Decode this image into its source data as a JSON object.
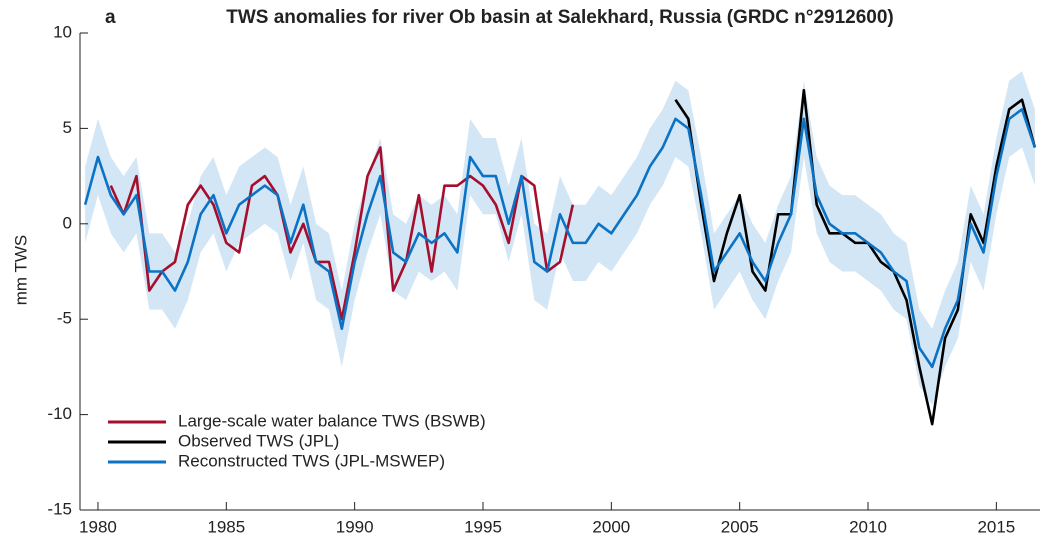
{
  "chart_data": {
    "type": "line",
    "panel_label": "a",
    "title": "TWS anomalies for river Ob basin at Salekhard, Russia (GRDC n°2912600)",
    "y_label": "mm TWS",
    "x": [
      1979.5,
      1980,
      1980.5,
      1981,
      1981.5,
      1982,
      1982.5,
      1983,
      1983.5,
      1984,
      1984.5,
      1985,
      1985.5,
      1986,
      1986.5,
      1987,
      1987.5,
      1988,
      1988.5,
      1989,
      1989.5,
      1990,
      1990.5,
      1991,
      1991.5,
      1992,
      1992.5,
      1993,
      1993.5,
      1994,
      1994.5,
      1995,
      1995.5,
      1996,
      1996.5,
      1997,
      1997.5,
      1998,
      1998.5,
      1999,
      1999.5,
      2000,
      2000.5,
      2001,
      2001.5,
      2002,
      2002.5,
      2003,
      2003.5,
      2004,
      2004.5,
      2005,
      2005.5,
      2006,
      2006.5,
      2007,
      2007.5,
      2008,
      2008.5,
      2009,
      2009.5,
      2010,
      2010.5,
      2011,
      2011.5,
      2012,
      2012.5,
      2013,
      2013.5,
      2014,
      2014.5,
      2015,
      2015.5,
      2016,
      2016.5
    ],
    "series": [
      {
        "name": "Large-scale water balance TWS (BSWB)",
        "color": "#a50f2d",
        "values": [
          null,
          null,
          2,
          0.5,
          2.5,
          -3.5,
          -2.5,
          -2,
          1,
          2,
          1,
          -1,
          -1.5,
          2,
          2.5,
          1.5,
          -1.5,
          0,
          -2,
          -2,
          -5,
          -1.5,
          2.5,
          4,
          -3.5,
          -2,
          1.5,
          -2.5,
          2,
          2,
          2.5,
          2,
          1,
          -1,
          2.5,
          2,
          -2.5,
          -2,
          1,
          null,
          null,
          null,
          null,
          null,
          null,
          null,
          null,
          null,
          null,
          null,
          null,
          null,
          null,
          null,
          null,
          null,
          null,
          null,
          null,
          null,
          null,
          null,
          null,
          null,
          null,
          null,
          null,
          null,
          null,
          null,
          null,
          null,
          null,
          null,
          null
        ]
      },
      {
        "name": "Observed TWS (JPL)",
        "color": "#000000",
        "values": [
          null,
          null,
          null,
          null,
          null,
          null,
          null,
          null,
          null,
          null,
          null,
          null,
          null,
          null,
          null,
          null,
          null,
          null,
          null,
          null,
          null,
          null,
          null,
          null,
          null,
          null,
          null,
          null,
          null,
          null,
          null,
          null,
          null,
          null,
          null,
          null,
          null,
          null,
          null,
          null,
          null,
          null,
          null,
          null,
          null,
          null,
          6.5,
          5.5,
          1,
          -3,
          -0.5,
          1.5,
          -2.5,
          -3.5,
          0.5,
          0.5,
          7,
          1,
          -0.5,
          -0.5,
          -1,
          -1,
          -2,
          -2.5,
          -4,
          -7.5,
          -10.5,
          -6,
          -4.5,
          0.5,
          -1,
          3,
          6,
          6.5,
          4
        ]
      },
      {
        "name": "Reconstructed TWS (JPL-MSWEP)",
        "color": "#0b72c4",
        "band_color": "#d3e6f5",
        "values": [
          1,
          3.5,
          1.5,
          0.5,
          1.5,
          -2.5,
          -2.5,
          -3.5,
          -2,
          0.5,
          1.5,
          -0.5,
          1,
          1.5,
          2,
          1.5,
          -1,
          1,
          -2,
          -2.5,
          -5.5,
          -2,
          0.5,
          2.5,
          -1.5,
          -2,
          -0.5,
          -1,
          -0.5,
          -1.5,
          3.5,
          2.5,
          2.5,
          0,
          2.5,
          -2,
          -2.5,
          0.5,
          -1,
          -1,
          0,
          -0.5,
          0.5,
          1.5,
          3,
          4,
          5.5,
          5,
          1.5,
          -2.5,
          -1.5,
          -0.5,
          -2,
          -3,
          -1,
          0.5,
          5.5,
          1.5,
          0,
          -0.5,
          -0.5,
          -1,
          -1.5,
          -2.5,
          -3,
          -6.5,
          -7.5,
          -5.5,
          -4,
          0,
          -1.5,
          2.5,
          5.5,
          6,
          4
        ],
        "lower": [
          -1,
          1.5,
          -0.5,
          -1.5,
          -0.5,
          -4.5,
          -4.5,
          -5.5,
          -4,
          -1.5,
          -0.5,
          -2.5,
          -1,
          -0.5,
          0,
          -0.5,
          -3,
          -1,
          -4,
          -4.5,
          -7.5,
          -4,
          -1.5,
          0.5,
          -3.5,
          -4,
          -2.5,
          -3,
          -2.5,
          -3.5,
          1.5,
          0.5,
          0.5,
          -2,
          0.5,
          -4,
          -4.5,
          -1.5,
          -3,
          -3,
          -2,
          -2.5,
          -1.5,
          -0.5,
          1,
          2,
          3.5,
          3,
          -0.5,
          -4.5,
          -3.5,
          -2.5,
          -4,
          -5,
          -3,
          -1.5,
          3.5,
          -0.5,
          -2,
          -2.5,
          -2.5,
          -3,
          -3.5,
          -4.5,
          -5,
          -8.5,
          -9.5,
          -7.5,
          -6,
          -2,
          -3.5,
          0.5,
          3.5,
          4,
          2
        ],
        "upper": [
          3,
          5.5,
          3.5,
          2.5,
          3.5,
          -0.5,
          -0.5,
          -1.5,
          0,
          2.5,
          3.5,
          1.5,
          3,
          3.5,
          4,
          3.5,
          1,
          3,
          0,
          -0.5,
          -3.5,
          0,
          2.5,
          4.5,
          0.5,
          0,
          1.5,
          1,
          1.5,
          0.5,
          5.5,
          4.5,
          4.5,
          2,
          4.5,
          0,
          -0.5,
          2.5,
          1,
          1,
          2,
          1.5,
          2.5,
          3.5,
          5,
          6,
          7.5,
          7,
          3.5,
          -0.5,
          0.5,
          1.5,
          0,
          -1,
          1,
          2.5,
          7.5,
          3.5,
          2,
          1.5,
          1.5,
          1,
          0.5,
          -0.5,
          -1,
          -4.5,
          -5.5,
          -3.5,
          -2,
          2,
          0.5,
          4.5,
          7.5,
          8,
          6
        ]
      }
    ],
    "xlim": [
      1979.3,
      2016.7
    ],
    "ylim": [
      -15,
      10
    ],
    "xticks": [
      1980,
      1985,
      1990,
      1995,
      2000,
      2005,
      2010,
      2015
    ],
    "yticks": [
      -15,
      -10,
      -5,
      0,
      5,
      10
    ],
    "legend": "lower left"
  }
}
